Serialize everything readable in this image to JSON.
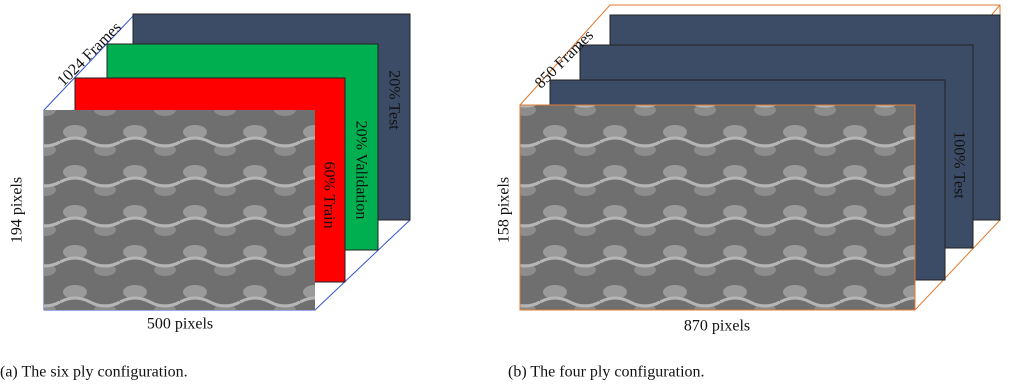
{
  "panels": [
    {
      "frames": "1024 Frames",
      "height": "194 pixels",
      "width": "500 pixels",
      "slices": [
        "60% Train",
        "20% Validation",
        "20% Test"
      ],
      "caption": "(a) The six ply configuration."
    },
    {
      "frames": "850 Frames",
      "height": "158 pixels",
      "width": "870 pixels",
      "slices": [
        "100% Test"
      ],
      "caption": "(b) The four ply configuration."
    }
  ]
}
